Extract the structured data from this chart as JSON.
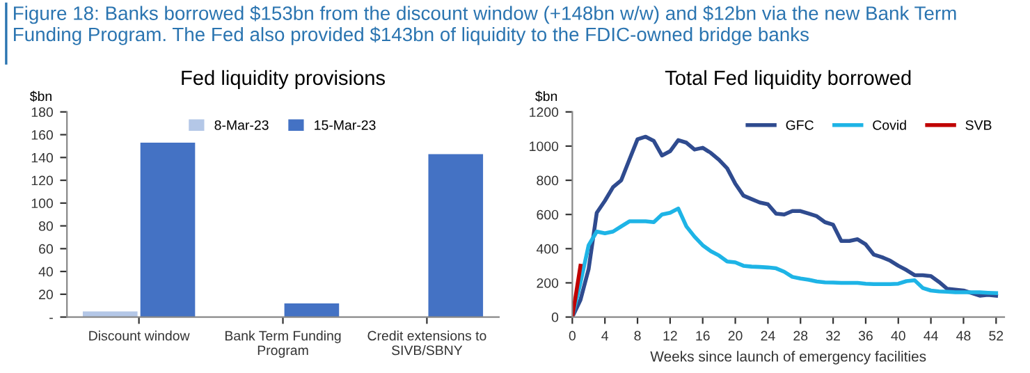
{
  "chart_data": [
    {
      "type": "bar",
      "title": "Fed liquidity provisions",
      "ylabel": "$bn",
      "annotations": [
        "Figure 18: Banks borrowed $153bn from the discount window (+148bn w/w) and $12bn via the new Bank Term Funding Program. The Fed also provided $143bn of liquidity to the FDIC-owned bridge banks"
      ],
      "categories": [
        "Discount window",
        "Bank Term Funding\nProgram",
        "Credit extensions to\nSIVB/SBNY"
      ],
      "series": [
        {
          "name": "8-Mar-23",
          "color": "#b4c7e7",
          "values": [
            5,
            null,
            null
          ]
        },
        {
          "name": "15-Mar-23",
          "color": "#4472c4",
          "values": [
            153,
            12,
            143
          ]
        }
      ],
      "ylim": [
        0,
        180
      ],
      "yticks": [
        {
          "value": 0,
          "label": "-"
        },
        20,
        40,
        60,
        80,
        100,
        120,
        140,
        160,
        180
      ],
      "legend": "top",
      "grid": false
    },
    {
      "type": "line",
      "title": "Total Fed liquidity borrowed",
      "ylabel": "$bn",
      "xlabel": "Weeks since launch of emergency facilities",
      "x": [
        0,
        1,
        2,
        3,
        4,
        5,
        6,
        7,
        8,
        9,
        10,
        11,
        12,
        13,
        14,
        15,
        16,
        17,
        18,
        19,
        20,
        21,
        22,
        23,
        24,
        25,
        26,
        27,
        28,
        29,
        30,
        31,
        32,
        33,
        34,
        35,
        36,
        37,
        38,
        39,
        40,
        41,
        42,
        43,
        44,
        45,
        46,
        47,
        48,
        49,
        50,
        51,
        52
      ],
      "series": [
        {
          "name": "GFC",
          "color": "#2f4b8f",
          "values": [
            0,
            100,
            280,
            610,
            680,
            760,
            800,
            920,
            1040,
            1055,
            1030,
            945,
            970,
            1035,
            1020,
            980,
            990,
            960,
            920,
            870,
            780,
            710,
            690,
            670,
            660,
            605,
            600,
            620,
            620,
            605,
            590,
            555,
            540,
            445,
            445,
            455,
            425,
            365,
            350,
            330,
            300,
            275,
            245,
            245,
            240,
            205,
            165,
            160,
            155,
            140,
            125,
            130,
            125
          ]
        },
        {
          "name": "Covid",
          "color": "#1eb4e6",
          "values": [
            0,
            200,
            420,
            500,
            490,
            500,
            530,
            560,
            560,
            560,
            555,
            600,
            610,
            635,
            530,
            470,
            420,
            385,
            360,
            325,
            320,
            300,
            295,
            293,
            290,
            285,
            265,
            235,
            225,
            218,
            208,
            203,
            202,
            200,
            200,
            200,
            195,
            193,
            193,
            193,
            195,
            210,
            215,
            170,
            155,
            150,
            148,
            145,
            145,
            145,
            145,
            142,
            140
          ]
        },
        {
          "name": "SVB",
          "color": "#c00000",
          "x": [
            0,
            1
          ],
          "values": [
            0,
            300
          ]
        }
      ],
      "xlim": [
        0,
        53
      ],
      "xticks": [
        0,
        4,
        8,
        12,
        16,
        20,
        24,
        28,
        32,
        36,
        40,
        44,
        48,
        52
      ],
      "ylim": [
        0,
        1200
      ],
      "yticks": [
        0,
        200,
        400,
        600,
        800,
        1000,
        1200
      ],
      "legend": "top right",
      "grid": false,
      "line_style": "solid",
      "marker": "none"
    }
  ]
}
